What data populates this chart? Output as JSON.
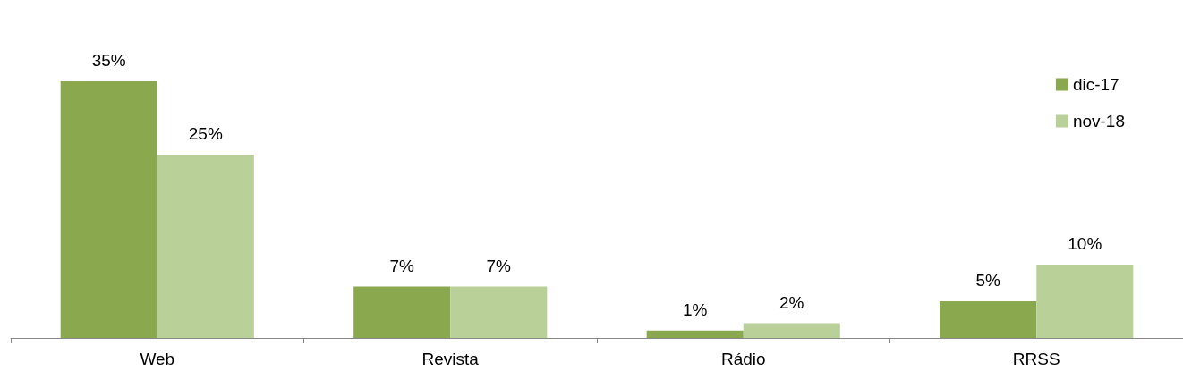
{
  "chart_data": {
    "type": "bar",
    "categories": [
      "Web",
      "Revista",
      "Rádio",
      "RRSS"
    ],
    "series": [
      {
        "name": "dic-17",
        "color": "#8aa84e",
        "values": [
          35,
          7,
          1,
          5
        ],
        "value_labels": [
          "35%",
          "7%",
          "1%",
          "5%"
        ]
      },
      {
        "name": "nov-18",
        "color": "#b9d098",
        "values": [
          25,
          7,
          2,
          10
        ],
        "value_labels": [
          "25%",
          "7%",
          "2%",
          "10%"
        ]
      }
    ],
    "legend": "top right",
    "grid": false
  }
}
